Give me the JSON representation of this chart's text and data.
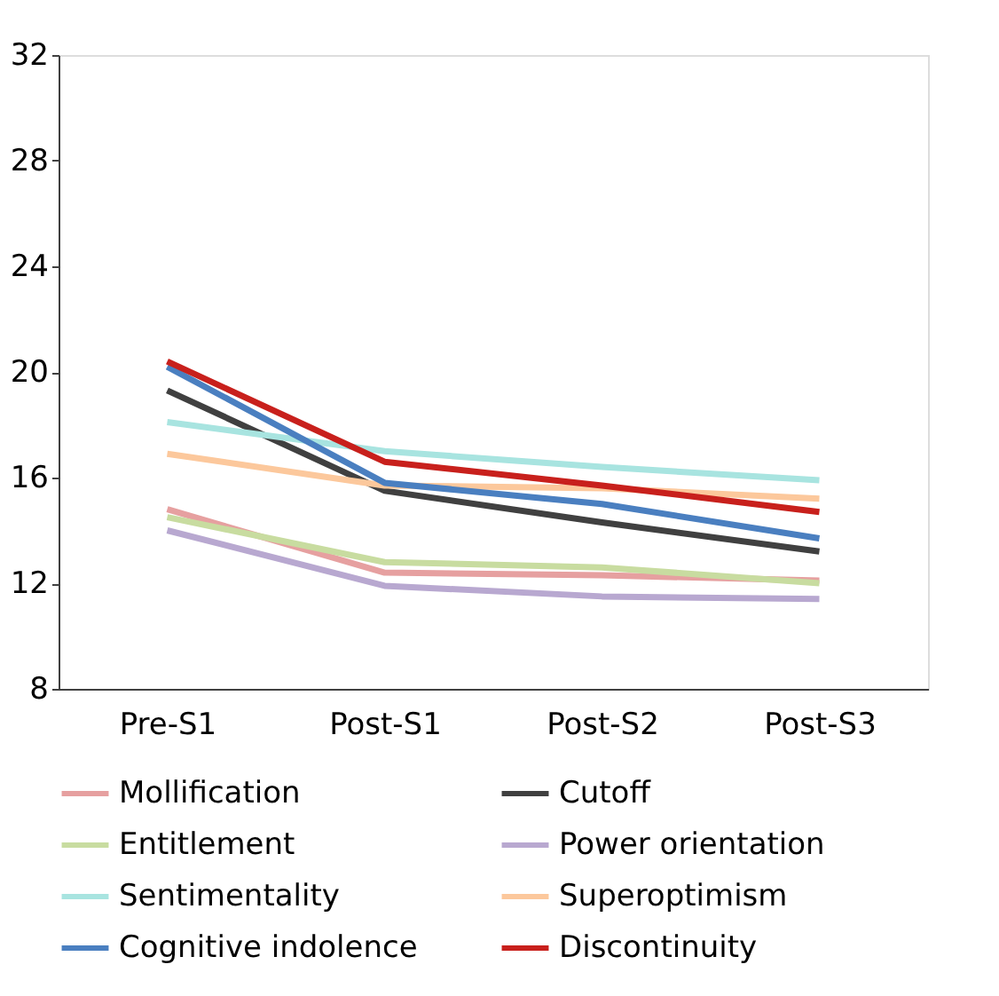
{
  "chart_data": {
    "type": "line",
    "categories": [
      "Pre-S1",
      "Post-S1",
      "Post-S2",
      "Post-S3"
    ],
    "ylim": [
      8,
      32
    ],
    "yticks": [
      8,
      12,
      16,
      20,
      24,
      28,
      32
    ],
    "grid": false,
    "legend": "bottom",
    "marker": "none",
    "line_style": "solid",
    "series": [
      {
        "name": "Mollification",
        "color": "#e6a0a0",
        "values": [
          14.8,
          12.4,
          12.3,
          12.1
        ]
      },
      {
        "name": "Cutoff",
        "color": "#404040",
        "values": [
          19.3,
          15.5,
          14.3,
          13.2
        ]
      },
      {
        "name": "Entitlement",
        "color": "#c8dca0",
        "values": [
          14.5,
          12.8,
          12.6,
          12.0
        ]
      },
      {
        "name": "Power orientation",
        "color": "#b8a8d0",
        "values": [
          14.0,
          11.9,
          11.5,
          11.4
        ]
      },
      {
        "name": "Sentimentality",
        "color": "#a8e4e0",
        "values": [
          18.1,
          17.0,
          16.4,
          15.9
        ]
      },
      {
        "name": "Superoptimism",
        "color": "#fcc89c",
        "values": [
          16.9,
          15.7,
          15.6,
          15.2
        ]
      },
      {
        "name": "Cognitive indolence",
        "color": "#4a7fc0",
        "values": [
          20.2,
          15.8,
          15.0,
          13.7
        ]
      },
      {
        "name": "Discontinuity",
        "color": "#c8201c",
        "values": [
          20.4,
          16.6,
          15.7,
          14.7
        ]
      }
    ]
  }
}
